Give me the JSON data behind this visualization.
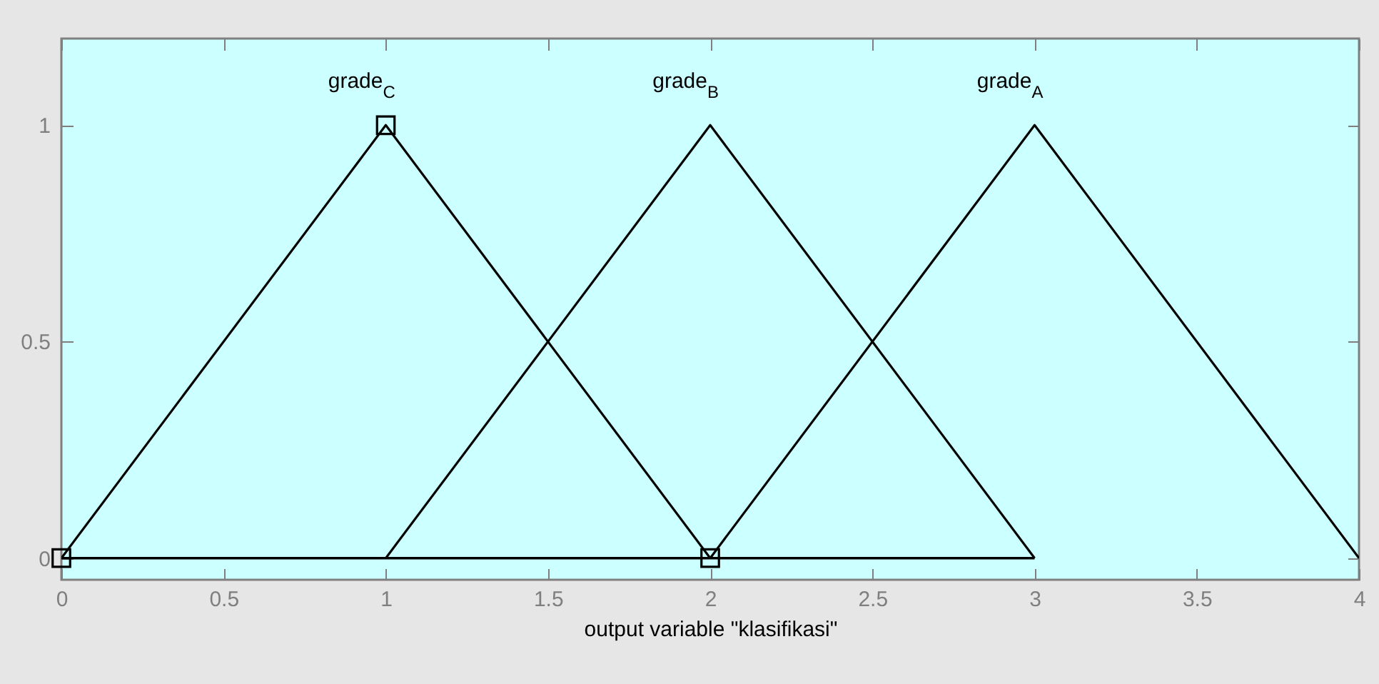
{
  "chart_data": {
    "type": "line",
    "xlabel": "output variable \"klasifikasi\"",
    "xlim": [
      0,
      4
    ],
    "ylim": [
      -0.05,
      1.2
    ],
    "xticks": [
      0,
      0.5,
      1,
      1.5,
      2,
      2.5,
      3,
      3.5,
      4
    ],
    "yticks": [
      0,
      0.5,
      1
    ],
    "series": [
      {
        "name": "grade$_{C}$",
        "color": "#000000",
        "x": [
          0,
          1,
          2
        ],
        "values": [
          0,
          1,
          0
        ],
        "marker": "square"
      },
      {
        "name": "grade$_{B}$",
        "color": "#000000",
        "x": [
          1,
          2,
          3
        ],
        "values": [
          0,
          1,
          0
        ]
      },
      {
        "name": "grade$_{A}$",
        "color": "#000000",
        "x": [
          2,
          3,
          4
        ],
        "values": [
          0,
          1,
          0
        ]
      },
      {
        "color": "#000000",
        "x": [
          0,
          3
        ],
        "values": [
          0,
          0
        ]
      }
    ]
  }
}
